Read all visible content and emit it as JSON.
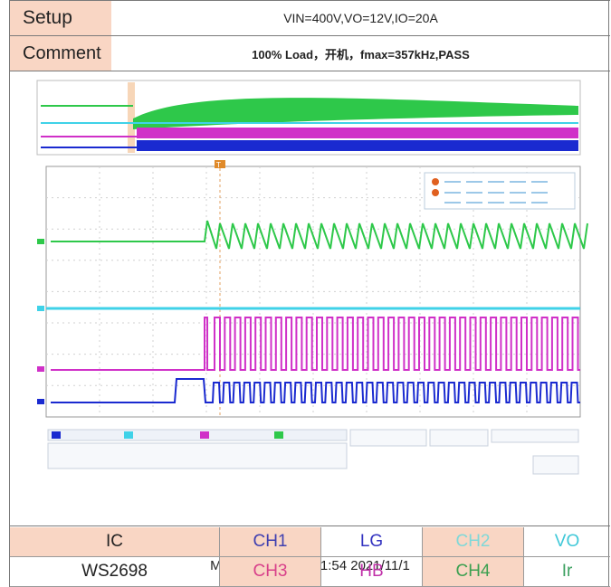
{
  "setup": {
    "label": "Setup",
    "value": "VIN=400V,VO=12V,IO=20A"
  },
  "comment": {
    "label": "Comment",
    "value": "100% Load，开机，fmax=357kHz,PASS"
  },
  "scope": {
    "caption": "MDO4024C - 19:51:54   2021/11/1",
    "trigger_marker": "T",
    "colors": {
      "ch1": "#e8d04a",
      "ch2": "#3fd2e8",
      "ch3": "#d030c8",
      "ch4": "#2ec84a",
      "ch_blue": "#1a2ad0"
    }
  },
  "channel_table": {
    "header": {
      "ic": "IC",
      "c1": "CH1",
      "s1": "LG",
      "c2": "CH2",
      "s2": "VO"
    },
    "row": {
      "ic": "WS2698",
      "c1": "CH3",
      "s1": "HB",
      "c2": "CH4",
      "s2": "Ir"
    },
    "colors": {
      "ch1": "#3f3fb0",
      "lg": "#3232c0",
      "ch2": "#7fd8d8",
      "vo": "#3fc8d8",
      "ch3": "#d8408a",
      "hb": "#c030a8",
      "ch4": "#3ca050",
      "ir": "#3ca060"
    }
  }
}
